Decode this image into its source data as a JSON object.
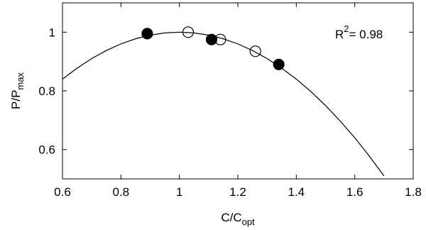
{
  "chart_data": {
    "type": "scatter",
    "xlabel": {
      "text": "C/C",
      "sub": "opt"
    },
    "ylabel": {
      "text": "P/P",
      "sub": "max"
    },
    "annotation": {
      "text": "R",
      "sup": "2",
      "rest": "= 0.98"
    },
    "xlim": [
      0.6,
      1.8
    ],
    "xticks": [
      0.6,
      0.8,
      1,
      1.2,
      1.4,
      1.6,
      1.8
    ],
    "ylim": [
      0.5,
      1.1
    ],
    "yticks": [
      0.6,
      0.8,
      1
    ],
    "series": [
      {
        "type": "line",
        "color": "#000000",
        "x": [
          0.6,
          0.65,
          0.7,
          0.75,
          0.8,
          0.85,
          0.9,
          0.95,
          1,
          1.05,
          1.1,
          1.15,
          1.2,
          1.25,
          1.3,
          1.35,
          1.4,
          1.45,
          1.5,
          1.55,
          1.6,
          1.65,
          1.7
        ],
        "values": [
          0.84,
          0.8775,
          0.91,
          0.9375,
          0.96,
          0.9775,
          0.99,
          0.9975,
          1,
          0.9975,
          0.99,
          0.9775,
          0.96,
          0.9375,
          0.91,
          0.8775,
          0.84,
          0.7975,
          0.75,
          0.6975,
          0.64,
          0.5775,
          0.51
        ]
      },
      {
        "type": "scatter",
        "color": "#000000",
        "marker_fill": "#000000",
        "x": [
          0.89,
          1.11,
          1.34
        ],
        "values": [
          0.995,
          0.975,
          0.89
        ]
      },
      {
        "type": "scatter",
        "color": "#000000",
        "marker_fill": "none",
        "x": [
          1.03,
          1.14,
          1.26
        ],
        "values": [
          1.0,
          0.975,
          0.935
        ]
      }
    ]
  }
}
